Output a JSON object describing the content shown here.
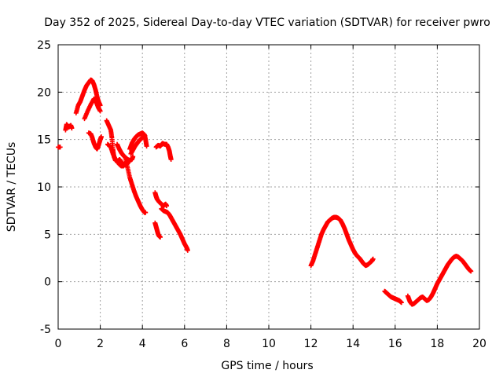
{
  "chart_data": {
    "type": "scatter",
    "title": "Day 352 of 2025, Sidereal Day-to-day VTEC variation (SDTVAR) for receiver pwro",
    "xlabel": "GPS time / hours",
    "ylabel": "SDTVAR / TECUs",
    "xlim": [
      0,
      20
    ],
    "ylim": [
      -5,
      25
    ],
    "xticks": [
      0,
      2,
      4,
      6,
      8,
      10,
      12,
      14,
      16,
      18,
      20
    ],
    "yticks": [
      -5,
      0,
      5,
      10,
      15,
      20,
      25
    ],
    "xtick_labels": [
      "0",
      "2",
      "4",
      "6",
      "8",
      "10",
      "12",
      "14",
      "16",
      "18",
      "20"
    ],
    "ytick_labels": [
      "-5",
      "0",
      "5",
      "10",
      "15",
      "20",
      "25"
    ],
    "grid": true,
    "marker": "+",
    "color": "#ff0000",
    "series": [
      {
        "name": "pwro",
        "segments": [
          [
            [
              0.0,
              14.2
            ],
            [
              0.1,
              14.2
            ]
          ],
          [
            [
              0.35,
              16.0
            ],
            [
              0.4,
              16.6
            ],
            [
              0.5,
              16.3
            ],
            [
              0.6,
              16.5
            ],
            [
              0.65,
              16.2
            ]
          ],
          [
            [
              0.85,
              17.8
            ],
            [
              0.95,
              18.6
            ],
            [
              1.05,
              19.0
            ],
            [
              1.15,
              19.6
            ],
            [
              1.25,
              20.2
            ],
            [
              1.35,
              20.7
            ],
            [
              1.45,
              21.0
            ],
            [
              1.55,
              21.3
            ],
            [
              1.62,
              21.2
            ],
            [
              1.7,
              20.8
            ],
            [
              1.78,
              20.2
            ],
            [
              1.85,
              19.5
            ],
            [
              1.92,
              19.0
            ],
            [
              2.0,
              18.6
            ]
          ],
          [
            [
              1.25,
              17.2
            ],
            [
              1.4,
              18.0
            ],
            [
              1.55,
              18.7
            ],
            [
              1.7,
              19.3
            ],
            [
              1.8,
              19.0
            ],
            [
              1.9,
              18.4
            ],
            [
              2.0,
              18.0
            ]
          ],
          [
            [
              1.45,
              15.7
            ],
            [
              1.55,
              15.6
            ],
            [
              1.62,
              15.2
            ],
            [
              1.7,
              14.6
            ],
            [
              1.78,
              14.2
            ],
            [
              1.85,
              14.0
            ],
            [
              1.92,
              14.4
            ],
            [
              2.0,
              15.0
            ],
            [
              2.05,
              15.3
            ]
          ],
          [
            [
              2.3,
              17.0
            ],
            [
              2.4,
              16.5
            ],
            [
              2.5,
              16.0
            ],
            [
              2.55,
              15.2
            ],
            [
              2.6,
              14.0
            ],
            [
              2.65,
              13.2
            ],
            [
              2.72,
              12.8
            ],
            [
              2.82,
              12.7
            ],
            [
              2.92,
              12.9
            ],
            [
              3.0,
              12.6
            ],
            [
              3.1,
              12.4
            ],
            [
              3.2,
              12.3
            ],
            [
              3.3,
              12.5
            ]
          ],
          [
            [
              2.35,
              14.5
            ],
            [
              2.5,
              14.2
            ],
            [
              2.6,
              13.5
            ],
            [
              2.7,
              13.0
            ],
            [
              2.8,
              12.7
            ],
            [
              2.9,
              12.4
            ],
            [
              3.0,
              12.2
            ],
            [
              3.1,
              12.2
            ],
            [
              3.2,
              12.5
            ],
            [
              3.3,
              12.8
            ],
            [
              3.4,
              12.7
            ]
          ],
          [
            [
              2.8,
              14.5
            ],
            [
              2.9,
              14.0
            ],
            [
              3.0,
              13.6
            ],
            [
              3.1,
              13.3
            ],
            [
              3.2,
              13.1
            ],
            [
              3.3,
              12.9
            ],
            [
              3.4,
              12.8
            ],
            [
              3.5,
              12.9
            ],
            [
              3.55,
              13.2
            ]
          ],
          [
            [
              3.2,
              13.0
            ],
            [
              3.3,
              12.0
            ],
            [
              3.4,
              11.0
            ],
            [
              3.5,
              10.3
            ],
            [
              3.6,
              9.6
            ],
            [
              3.7,
              9.0
            ],
            [
              3.8,
              8.5
            ],
            [
              3.9,
              8.0
            ],
            [
              4.0,
              7.6
            ],
            [
              4.1,
              7.3
            ],
            [
              4.15,
              7.3
            ]
          ],
          [
            [
              3.4,
              14.0
            ],
            [
              3.5,
              14.6
            ],
            [
              3.6,
              15.0
            ],
            [
              3.7,
              15.3
            ],
            [
              3.8,
              15.5
            ],
            [
              3.9,
              15.6
            ],
            [
              4.0,
              15.7
            ],
            [
              4.1,
              15.5
            ],
            [
              4.15,
              15.0
            ],
            [
              4.2,
              14.3
            ]
          ],
          [
            [
              3.45,
              13.5
            ],
            [
              3.55,
              13.9
            ],
            [
              3.65,
              14.3
            ],
            [
              3.75,
              14.6
            ],
            [
              3.85,
              14.9
            ],
            [
              3.95,
              15.1
            ],
            [
              4.05,
              15.3
            ],
            [
              4.12,
              15.4
            ]
          ],
          [
            [
              4.6,
              9.4
            ],
            [
              4.65,
              9.0
            ],
            [
              4.7,
              8.7
            ],
            [
              4.8,
              8.4
            ],
            [
              4.9,
              8.2
            ],
            [
              5.0,
              8.0
            ],
            [
              5.1,
              8.2
            ],
            [
              5.15,
              8.0
            ]
          ],
          [
            [
              4.6,
              6.2
            ],
            [
              4.65,
              5.8
            ],
            [
              4.7,
              5.4
            ],
            [
              4.75,
              5.0
            ],
            [
              4.8,
              4.8
            ],
            [
              4.85,
              4.7
            ]
          ],
          [
            [
              4.65,
              14.2
            ],
            [
              4.75,
              14.4
            ],
            [
              4.85,
              14.3
            ],
            [
              4.95,
              14.6
            ],
            [
              5.05,
              14.5
            ],
            [
              5.15,
              14.5
            ],
            [
              5.22,
              14.2
            ],
            [
              5.28,
              13.8
            ],
            [
              5.32,
              13.3
            ],
            [
              5.36,
              12.9
            ]
          ],
          [
            [
              4.9,
              7.7
            ],
            [
              5.0,
              7.5
            ],
            [
              5.1,
              7.4
            ],
            [
              5.2,
              7.3
            ],
            [
              5.3,
              7.0
            ],
            [
              5.4,
              6.6
            ],
            [
              5.5,
              6.2
            ],
            [
              5.6,
              5.8
            ],
            [
              5.7,
              5.4
            ],
            [
              5.8,
              5.0
            ],
            [
              5.9,
              4.5
            ],
            [
              6.0,
              4.0
            ],
            [
              6.1,
              3.6
            ],
            [
              6.15,
              3.3
            ]
          ],
          [
            [
              12.0,
              1.7
            ],
            [
              12.1,
              2.2
            ],
            [
              12.2,
              2.9
            ],
            [
              12.3,
              3.6
            ],
            [
              12.4,
              4.3
            ],
            [
              12.5,
              5.0
            ],
            [
              12.6,
              5.5
            ],
            [
              12.7,
              5.9
            ],
            [
              12.8,
              6.3
            ],
            [
              12.9,
              6.5
            ],
            [
              13.0,
              6.7
            ],
            [
              13.1,
              6.8
            ],
            [
              13.2,
              6.8
            ],
            [
              13.3,
              6.7
            ],
            [
              13.4,
              6.5
            ],
            [
              13.5,
              6.1
            ],
            [
              13.6,
              5.6
            ],
            [
              13.7,
              5.0
            ],
            [
              13.8,
              4.4
            ],
            [
              13.9,
              3.9
            ],
            [
              14.0,
              3.4
            ],
            [
              14.1,
              3.0
            ],
            [
              14.2,
              2.7
            ],
            [
              14.3,
              2.5
            ],
            [
              14.4,
              2.2
            ],
            [
              14.5,
              1.9
            ],
            [
              14.6,
              1.7
            ],
            [
              14.7,
              1.8
            ],
            [
              14.8,
              2.0
            ],
            [
              14.9,
              2.2
            ],
            [
              14.95,
              2.4
            ]
          ],
          [
            [
              15.5,
              -1.0
            ],
            [
              15.6,
              -1.2
            ],
            [
              15.7,
              -1.4
            ],
            [
              15.8,
              -1.6
            ],
            [
              15.9,
              -1.7
            ],
            [
              16.0,
              -1.8
            ],
            [
              16.1,
              -1.9
            ],
            [
              16.2,
              -2.0
            ],
            [
              16.3,
              -2.2
            ]
          ],
          [
            [
              16.6,
              -1.5
            ],
            [
              16.7,
              -2.1
            ],
            [
              16.8,
              -2.4
            ],
            [
              16.9,
              -2.3
            ],
            [
              17.0,
              -2.1
            ],
            [
              17.1,
              -1.9
            ],
            [
              17.2,
              -1.7
            ],
            [
              17.3,
              -1.6
            ],
            [
              17.4,
              -1.8
            ],
            [
              17.5,
              -2.0
            ],
            [
              17.6,
              -1.9
            ],
            [
              17.7,
              -1.6
            ],
            [
              17.8,
              -1.2
            ],
            [
              17.9,
              -0.7
            ],
            [
              18.0,
              -0.2
            ],
            [
              18.1,
              0.2
            ],
            [
              18.2,
              0.6
            ],
            [
              18.3,
              1.0
            ],
            [
              18.4,
              1.4
            ],
            [
              18.5,
              1.8
            ],
            [
              18.6,
              2.1
            ],
            [
              18.7,
              2.4
            ],
            [
              18.8,
              2.6
            ],
            [
              18.9,
              2.7
            ],
            [
              19.0,
              2.6
            ],
            [
              19.1,
              2.4
            ],
            [
              19.2,
              2.2
            ],
            [
              19.3,
              1.9
            ],
            [
              19.4,
              1.6
            ],
            [
              19.5,
              1.3
            ],
            [
              19.6,
              1.1
            ]
          ]
        ]
      }
    ]
  }
}
